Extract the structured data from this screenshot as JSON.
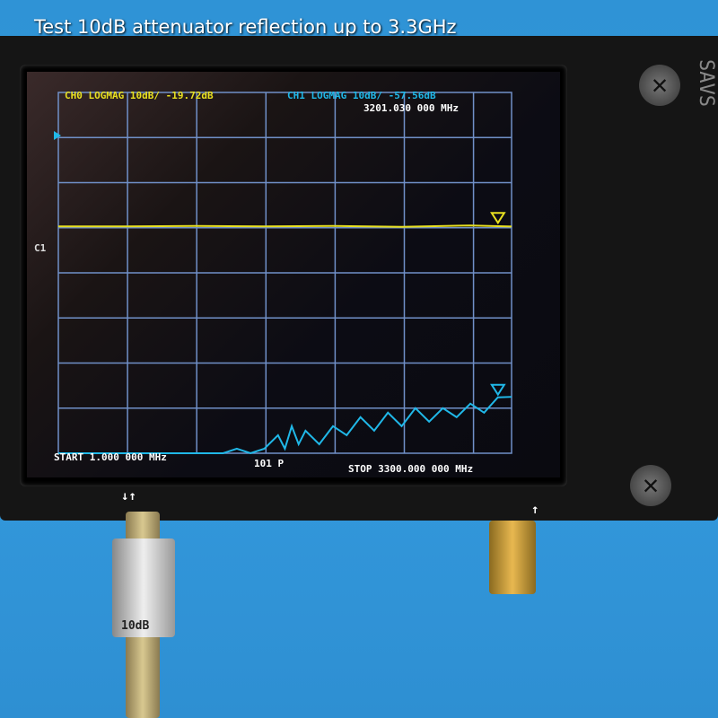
{
  "caption": "Test 10dB attenuator reflection up to 3.3GHz",
  "screen": {
    "ch0_label": "CH0 LOGMAG 10dB/ -19.72dB",
    "ch1_label": "CH1 LOGMAG 10dB/ -57.56dB",
    "marker_freq": "3201.030 000 MHz",
    "side_label": "C1",
    "start": "START 1.000 000 MHz",
    "points": "101 P",
    "stop": "STOP 3300.000 000 MHz",
    "marker_symbol": "1"
  },
  "device": {
    "port_label_left": "↓↑",
    "port_label_right": "↑",
    "attenuator_label": "10dB"
  },
  "colors": {
    "ch0": "#e8e020",
    "ch1": "#20b8e8",
    "grid": "#7090c8",
    "background": "#2f93d6"
  },
  "chart_data": {
    "type": "line",
    "xlabel": "",
    "ylabel": "",
    "xlim": [
      1,
      3300
    ],
    "ylim": [
      -70,
      10
    ],
    "grid": true,
    "y_scale": "10dB/div",
    "series": [
      {
        "name": "CH0",
        "x": [
          1,
          500,
          1000,
          1500,
          2000,
          2500,
          3000,
          3300
        ],
        "values": [
          -19.7,
          -19.7,
          -19.6,
          -19.7,
          -19.6,
          -19.8,
          -19.5,
          -19.72
        ]
      },
      {
        "name": "CH1",
        "x": [
          1,
          1200,
          1300,
          1400,
          1500,
          1600,
          1650,
          1700,
          1750,
          1800,
          1900,
          2000,
          2100,
          2200,
          2300,
          2400,
          2500,
          2600,
          2700,
          2800,
          2900,
          3000,
          3100,
          3200,
          3300
        ],
        "values": [
          -70,
          -70,
          -69,
          -70,
          -69,
          -66,
          -69,
          -64,
          -68,
          -65,
          -68,
          -64,
          -66,
          -62,
          -65,
          -61,
          -64,
          -60,
          -63,
          -60,
          -62,
          -59,
          -61,
          -57.6,
          -57.5
        ]
      }
    ]
  }
}
